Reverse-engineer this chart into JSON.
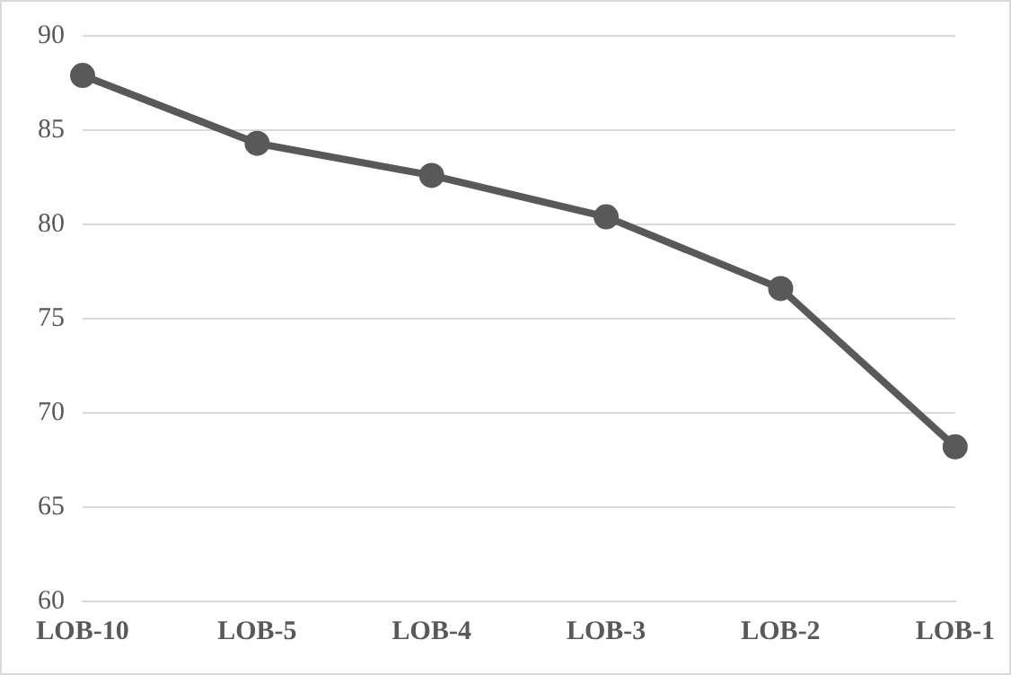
{
  "chart_data": {
    "type": "line",
    "categories": [
      "LOB-10",
      "LOB-5",
      "LOB-4",
      "LOB-3",
      "LOB-2",
      "LOB-1"
    ],
    "series": [
      {
        "color": "#595959",
        "values": [
          87.9,
          84.3,
          82.6,
          80.4,
          76.6,
          68.2
        ]
      }
    ],
    "ylim": [
      60,
      90
    ],
    "yticks": [
      60,
      65,
      70,
      75,
      80,
      85,
      90
    ],
    "grid": "y",
    "legend": false,
    "marker": "circle",
    "line_style": "solid"
  }
}
